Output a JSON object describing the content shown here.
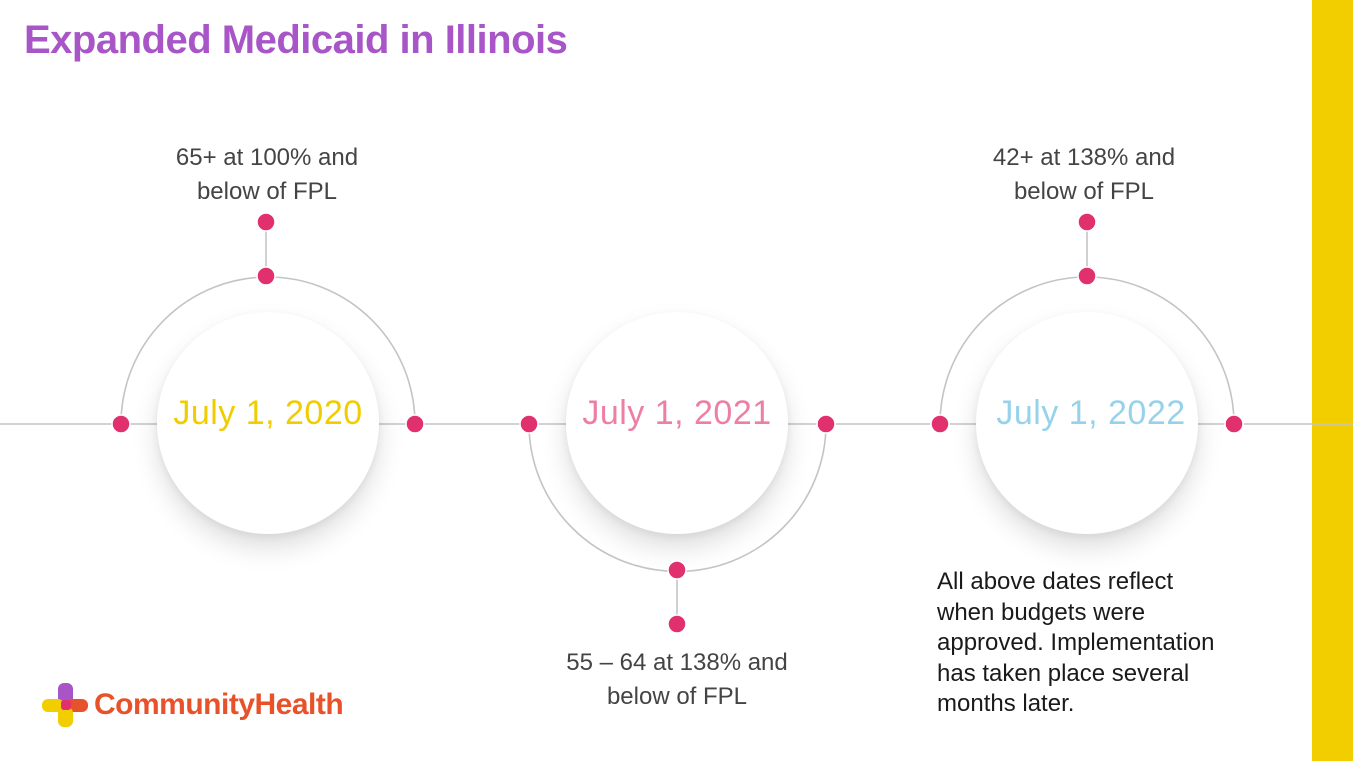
{
  "title": "Expanded Medicaid in Illinois",
  "colors": {
    "title": "#a855c8",
    "right_bar": "#f2cd00",
    "line": "#c4c4c4",
    "dot": "#e0306e",
    "date_2020": "#f0cc00",
    "date_2021": "#ec7fa3",
    "date_2022": "#96d3ea",
    "logo_text": "#e8522a"
  },
  "milestones": [
    {
      "date": "July 1, 2020",
      "label_lines": [
        "65+ at 100% and",
        "below of FPL"
      ],
      "position": "above"
    },
    {
      "date": "July 1, 2021",
      "label_lines": [
        "55 – 64 at 138% and",
        "below of FPL"
      ],
      "position": "below"
    },
    {
      "date": "July 1, 2022",
      "label_lines": [
        "42+ at 138% and",
        "below of FPL"
      ],
      "position": "above"
    }
  ],
  "note_lines": [
    "All above dates reflect",
    "when budgets were",
    "approved. Implementation",
    "has taken place several",
    "months later."
  ],
  "logo": {
    "text": "CommunityHealth",
    "icon": "community-health-cross-icon"
  }
}
